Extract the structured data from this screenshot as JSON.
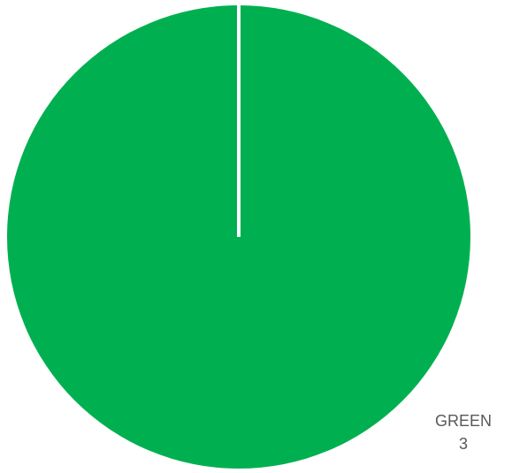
{
  "chart_data": {
    "type": "pie",
    "categories": [
      "GREEN"
    ],
    "values": [
      3
    ],
    "colors": [
      "#00b050"
    ],
    "slice_border_color": "#ffffff",
    "start_angle_deg": 0,
    "legend": "none",
    "data_labels": [
      {
        "category": "GREEN",
        "value": "3"
      }
    ]
  }
}
